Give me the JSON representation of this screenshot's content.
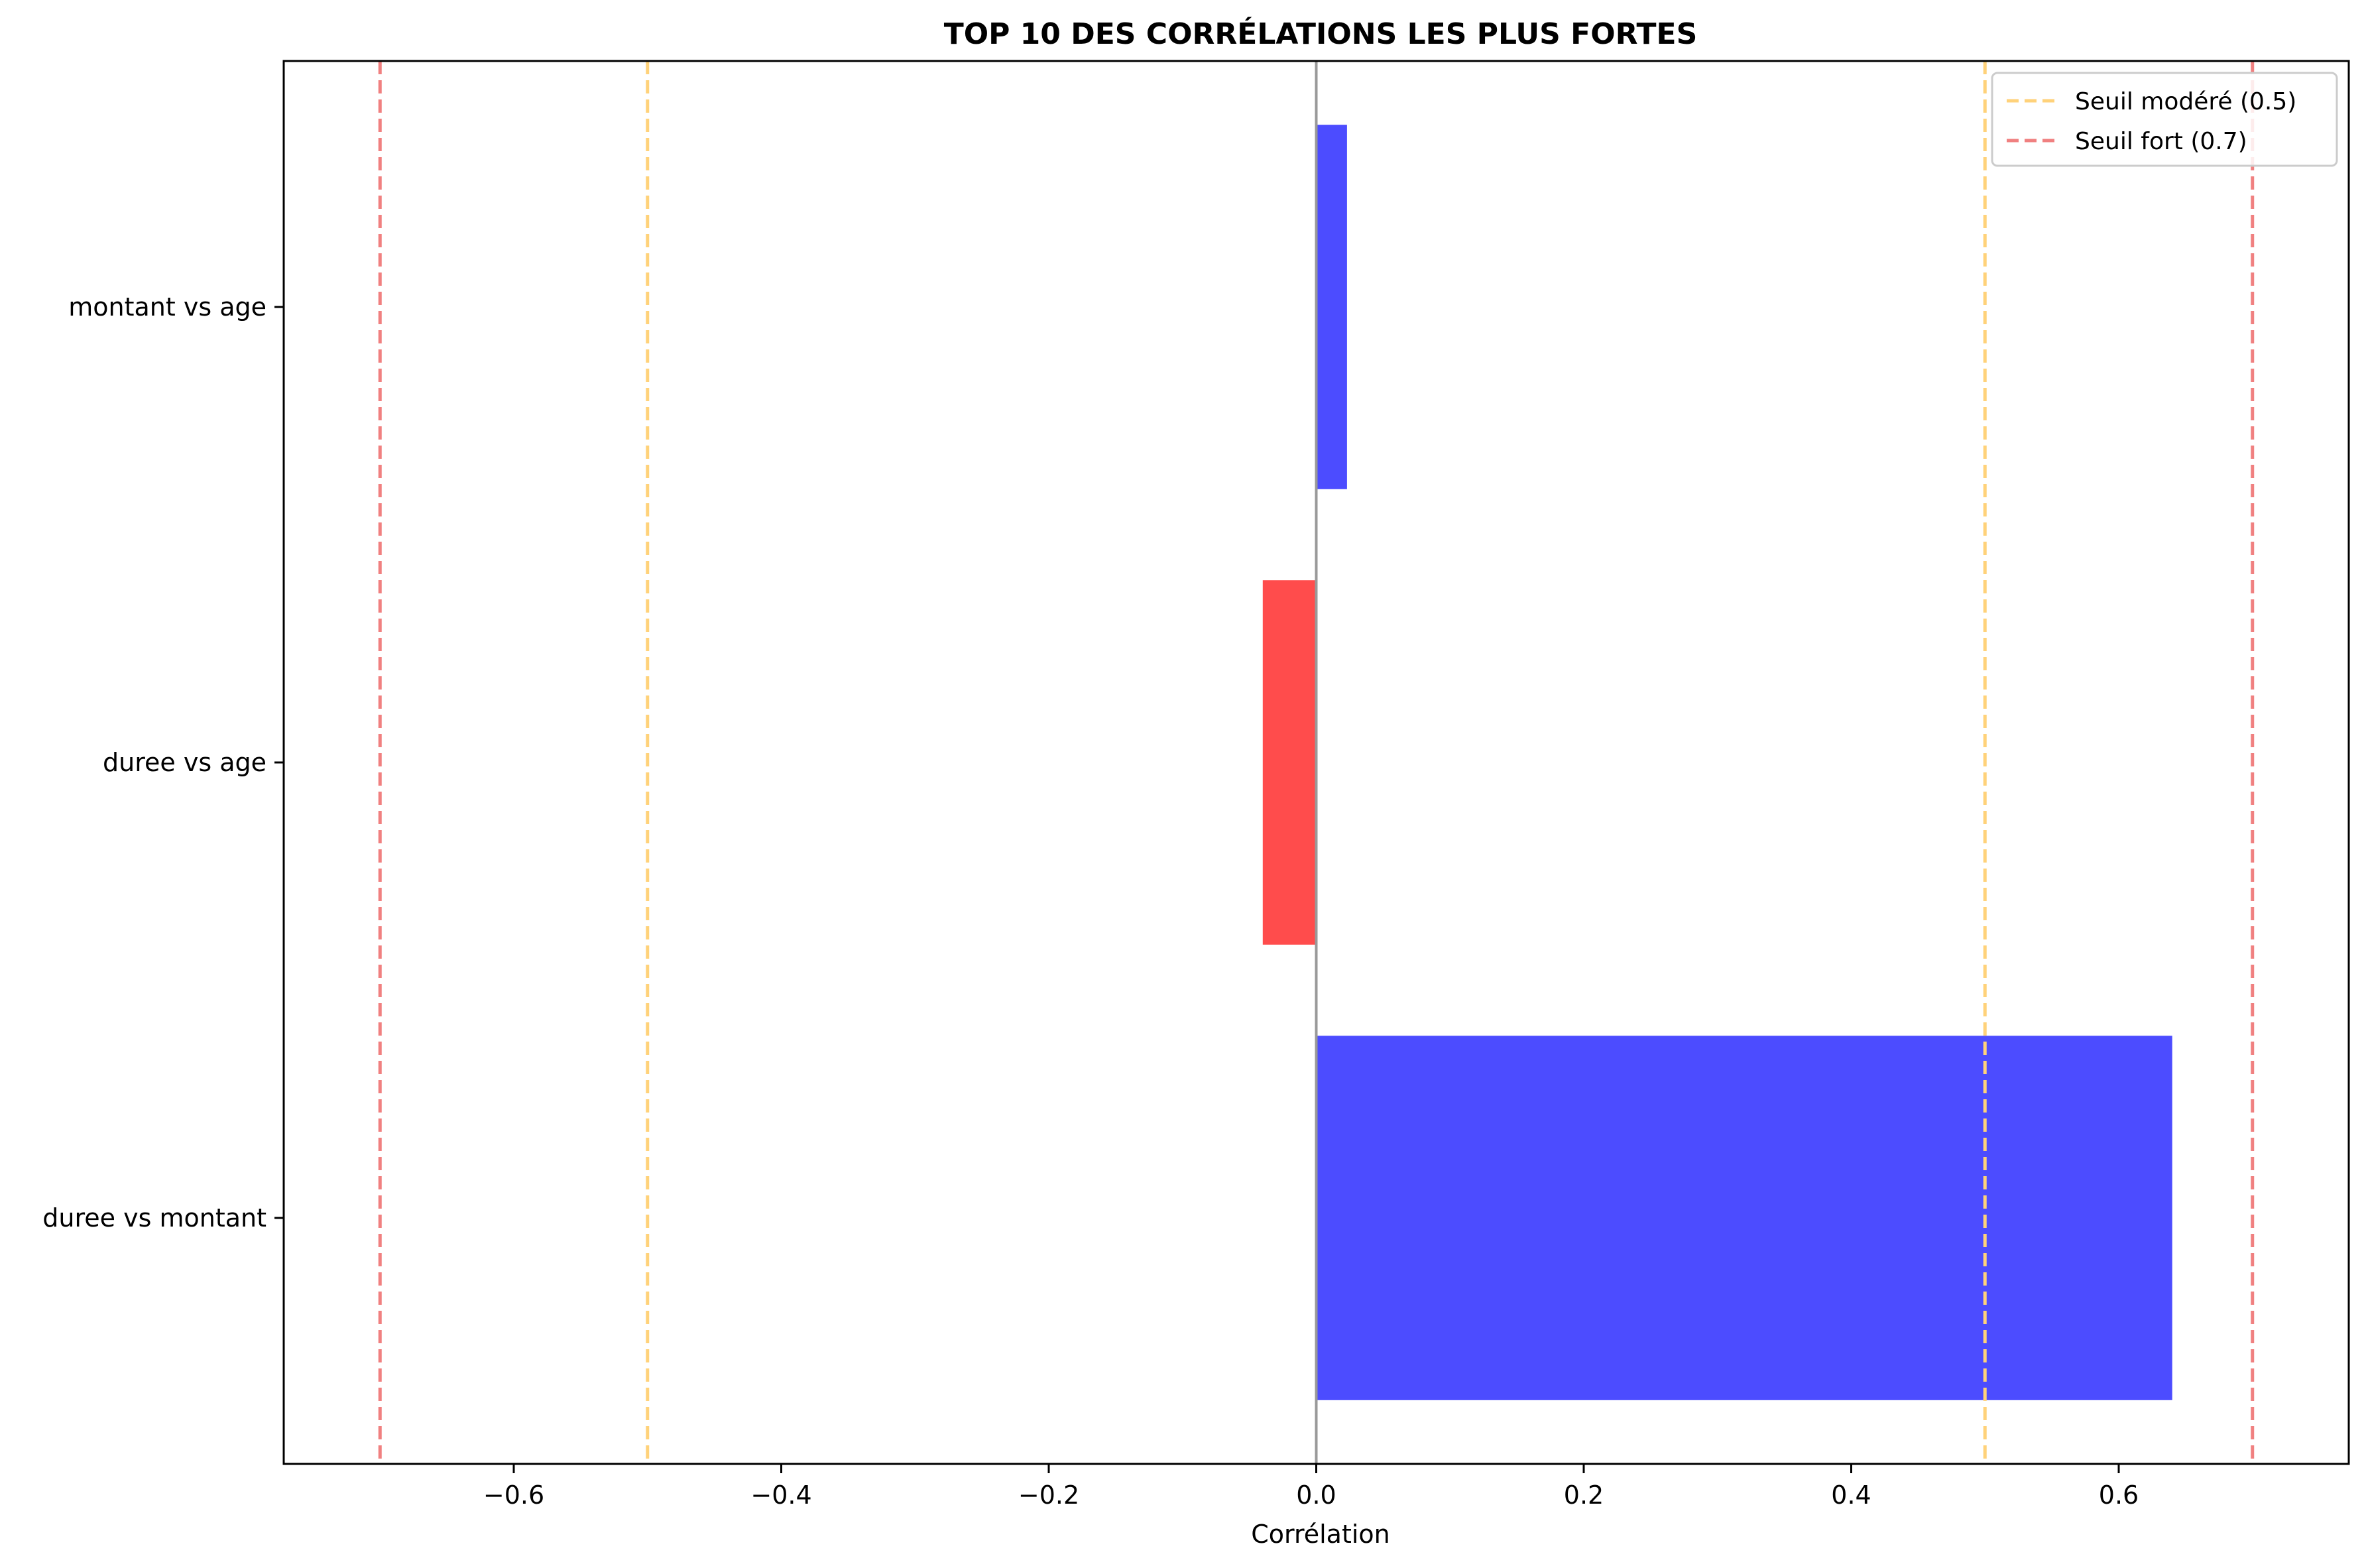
{
  "chart_data": {
    "type": "bar",
    "orientation": "horizontal",
    "title": "TOP 10 DES CORRÉLATIONS LES PLUS FORTES",
    "xlabel": "Corrélation",
    "ylabel": "",
    "xlim": [
      -0.772,
      0.772
    ],
    "x_ticks": [
      -0.6,
      -0.4,
      -0.2,
      0.0,
      0.2,
      0.4,
      0.6
    ],
    "x_tick_labels": [
      "−0.6",
      "−0.4",
      "−0.2",
      "0.0",
      "0.2",
      "0.4",
      "0.6"
    ],
    "categories": [
      "duree vs montant",
      "duree vs age",
      "montant vs age"
    ],
    "values": [
      0.64,
      -0.04,
      0.023
    ],
    "positive_color": "#0000ff",
    "negative_color": "#ff0000",
    "bar_opacity": 0.7,
    "zero_line_color": "#999999",
    "grid": false,
    "reference_lines": [
      {
        "x": -0.7,
        "color": "#f08080",
        "style": "dashed"
      },
      {
        "x": -0.5,
        "color": "#ffd27a",
        "style": "dashed"
      },
      {
        "x": 0.5,
        "color": "#ffd27a",
        "style": "dashed"
      },
      {
        "x": 0.7,
        "color": "#f08080",
        "style": "dashed"
      }
    ],
    "legend": {
      "position": "top-right",
      "entries": [
        {
          "label": "Seuil modéré (0.5)",
          "color": "#ffd27a"
        },
        {
          "label": "Seuil fort (0.7)",
          "color": "#f08080"
        }
      ]
    }
  }
}
